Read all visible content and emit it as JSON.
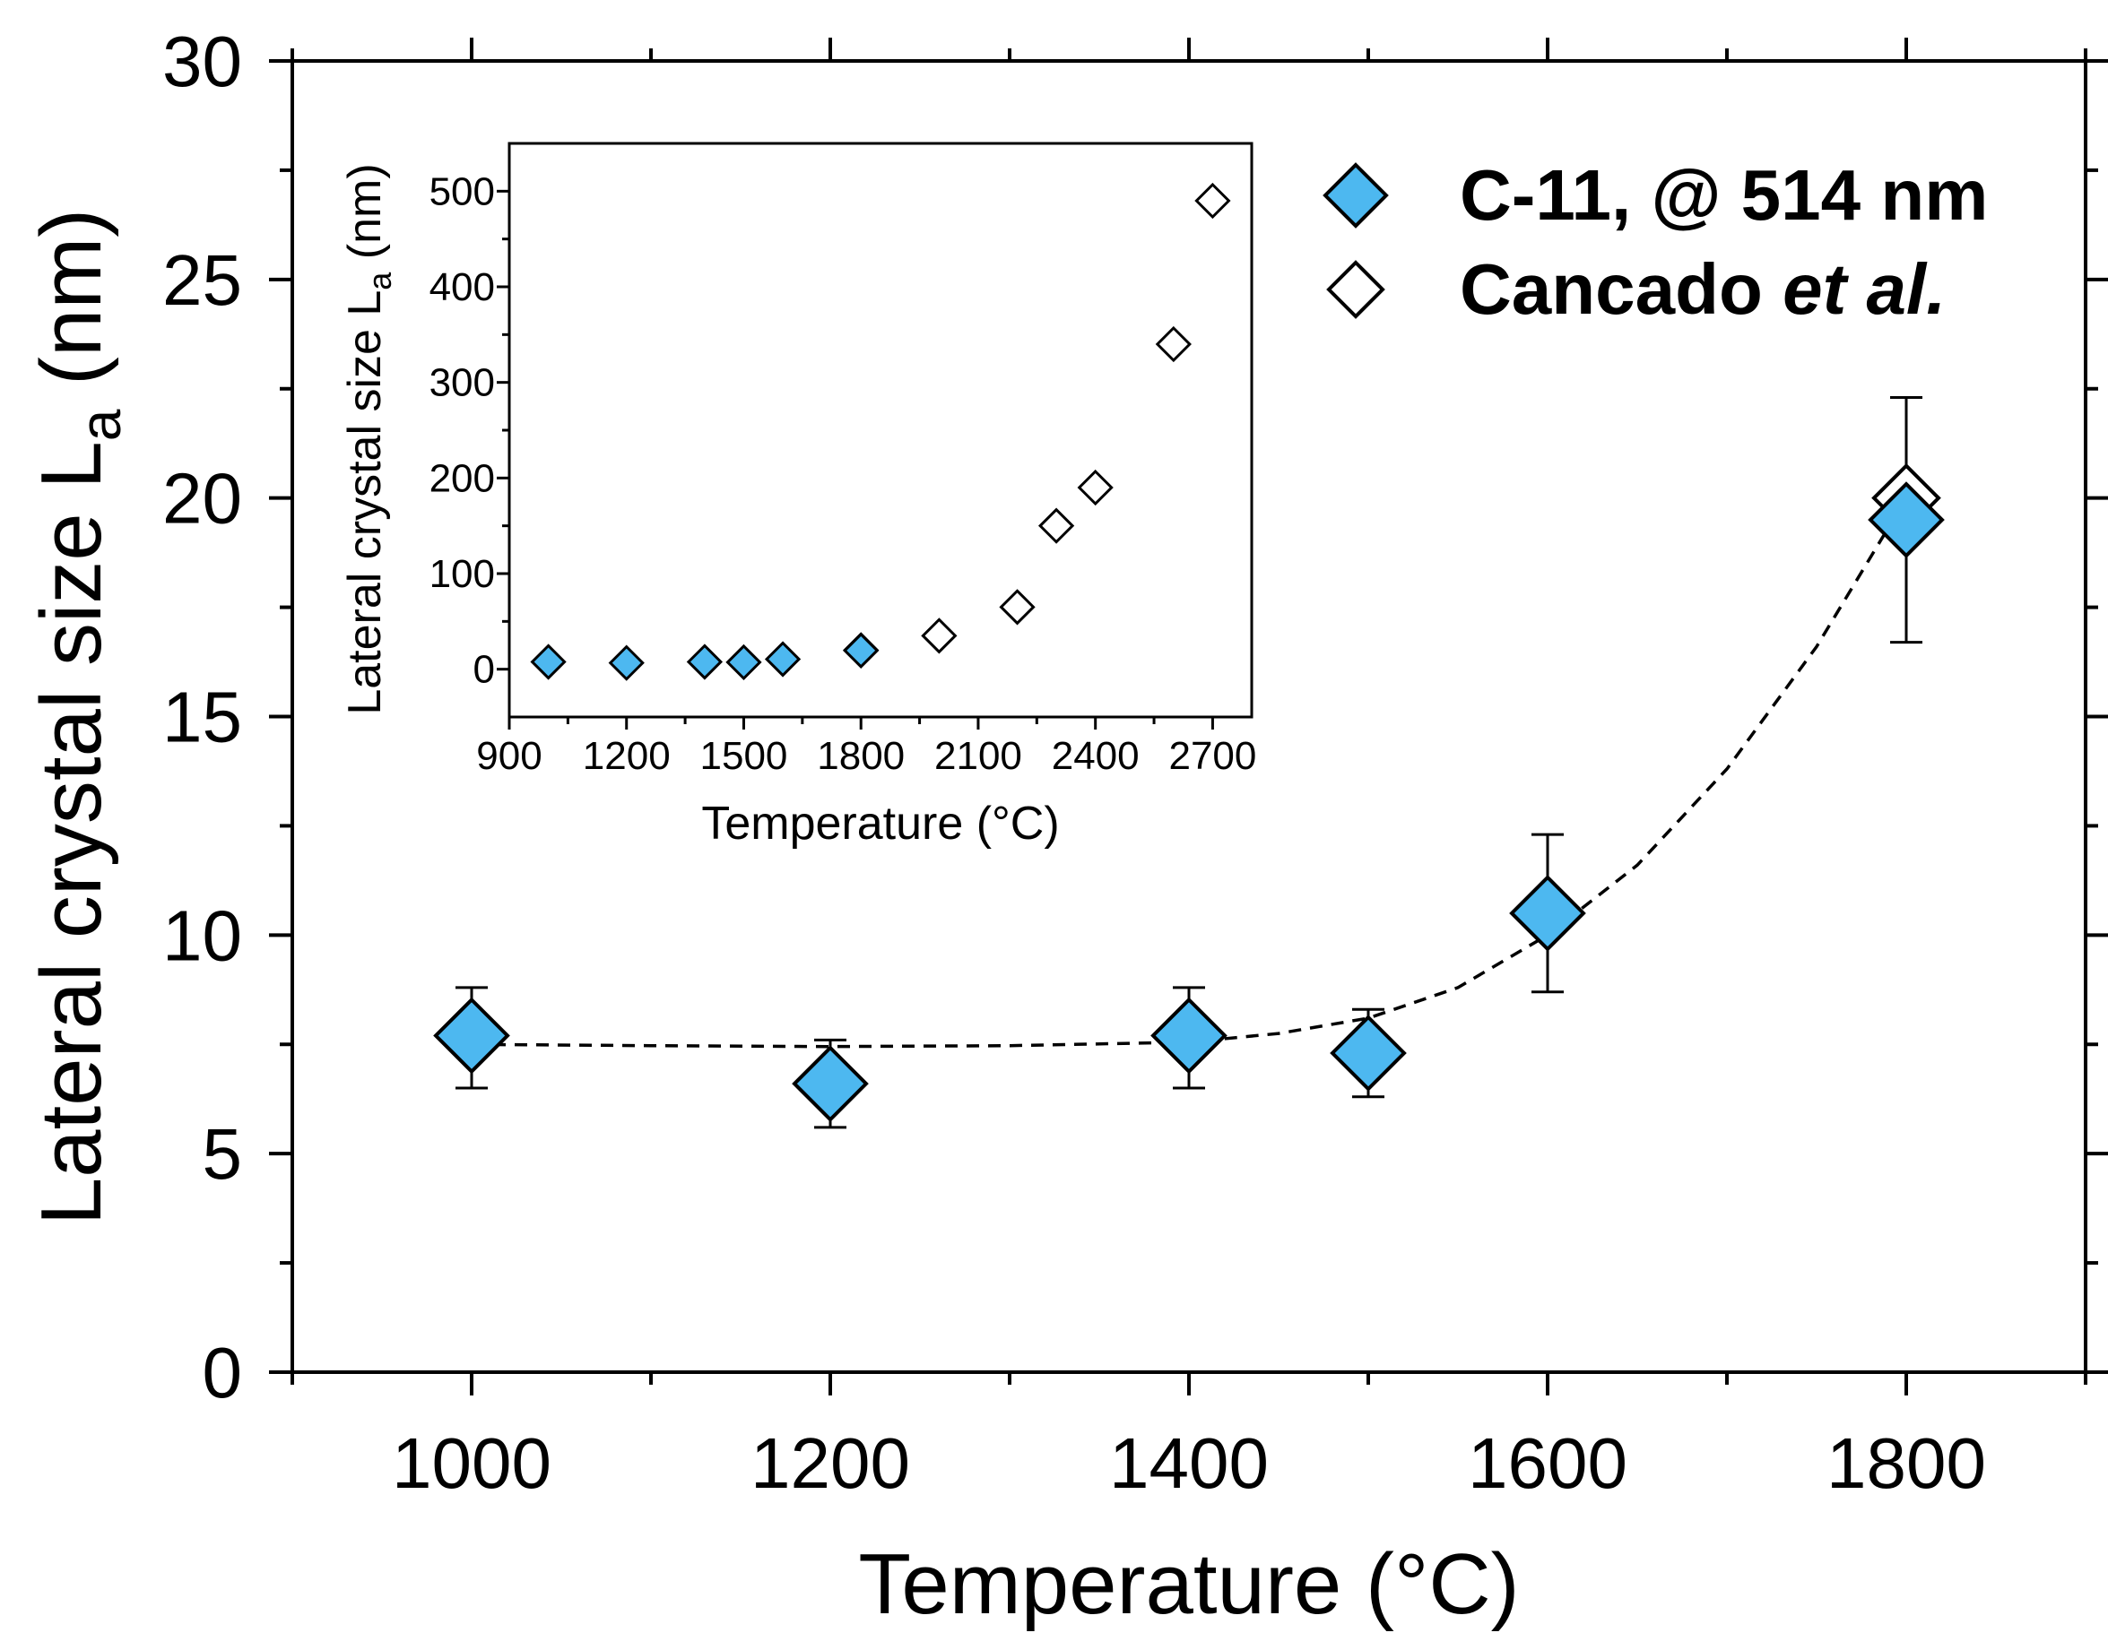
{
  "chart_data": [
    {
      "type": "scatter",
      "role": "main",
      "xlabel": "Temperature (°C)",
      "ylabel_main": "Lateral crystal size L",
      "ylabel_sub": "a",
      "ylabel_unit": " (nm)",
      "xlim": [
        900,
        1900
      ],
      "ylim": [
        0,
        30
      ],
      "xticks": [
        1000,
        1200,
        1400,
        1600,
        1800
      ],
      "yticks": [
        0,
        5,
        10,
        15,
        20,
        25,
        30
      ],
      "grid": false,
      "series": [
        {
          "name": "C-11, @ 514 nm",
          "marker": "diamond-filled",
          "x": [
            1000,
            1200,
            1400,
            1500,
            1600,
            1800
          ],
          "y": [
            7.7,
            6.6,
            7.7,
            7.3,
            10.5,
            19.5
          ],
          "yerr_low": [
            6.5,
            5.6,
            6.5,
            6.3,
            8.7,
            16.7
          ],
          "yerr_high": [
            8.8,
            7.6,
            8.8,
            8.3,
            12.3,
            22.3
          ]
        },
        {
          "name_main": "Cancado ",
          "name_em": "et al.",
          "marker": "diamond-open",
          "x": [
            1800
          ],
          "y": [
            20
          ]
        }
      ],
      "fit_curve": {
        "style": "dashed",
        "x": [
          1000,
          1100,
          1200,
          1300,
          1400,
          1450,
          1500,
          1550,
          1600,
          1650,
          1700,
          1750,
          1800
        ],
        "y": [
          7.5,
          7.47,
          7.45,
          7.47,
          7.55,
          7.75,
          8.1,
          8.8,
          10.0,
          11.6,
          13.8,
          16.6,
          20.0
        ]
      },
      "legend_position": "top-right"
    },
    {
      "type": "scatter",
      "role": "inset",
      "xlabel": "Temperature (°C)",
      "ylabel_main": "Lateral crystal size L",
      "ylabel_sub": "a",
      "ylabel_unit": " (nm)",
      "xlim": [
        900,
        2800
      ],
      "ylim": [
        -50,
        550
      ],
      "xticks": [
        900,
        1200,
        1500,
        1800,
        2100,
        2400,
        2700
      ],
      "yticks": [
        0,
        100,
        200,
        300,
        400,
        500
      ],
      "series": [
        {
          "name": "C-11, @ 514 nm",
          "marker": "diamond-filled",
          "x": [
            1000,
            1200,
            1400,
            1500,
            1600,
            1800
          ],
          "y": [
            7.7,
            6.6,
            7.7,
            7.3,
            10.5,
            19.5
          ]
        },
        {
          "name": "Cancado et al.",
          "marker": "diamond-open",
          "x": [
            1800,
            2000,
            2200,
            2300,
            2400,
            2600,
            2700
          ],
          "y": [
            20,
            35,
            65,
            150,
            190,
            340,
            490
          ]
        }
      ]
    }
  ],
  "colors": {
    "filled_marker": "#4db8f0",
    "open_marker": "#ffffff",
    "stroke": "#000000"
  }
}
